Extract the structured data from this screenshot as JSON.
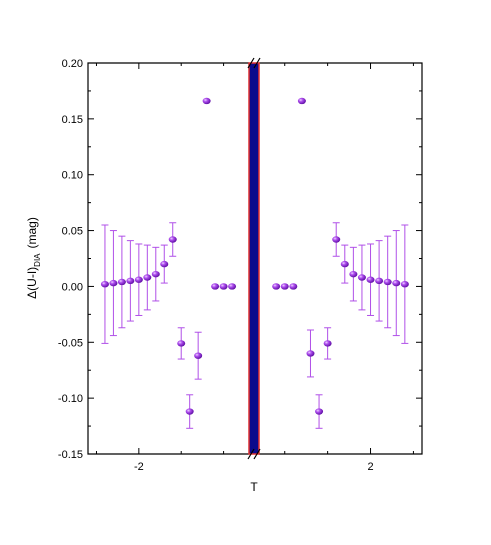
{
  "chart_data": {
    "type": "scatter",
    "title": "",
    "xlabel": "T",
    "ylabel": {
      "main": "Δ(U-I)",
      "subscript": "DIA",
      "unit": "(mag)"
    },
    "ylim": [
      -0.15,
      0.2
    ],
    "yticks": [
      "0.20",
      "0.15",
      "0.10",
      "0.05",
      "0.00",
      "-0.05",
      "-0.10",
      "-0.15"
    ],
    "xticks": [
      {
        "value": -2,
        "label": "-2"
      },
      {
        "value": 2,
        "label": "2"
      }
    ],
    "axis_break": {
      "center": 0,
      "band_color": "#0a0a8c",
      "border_color": "#e03030"
    },
    "colors": {
      "points": "#9a30e0",
      "errorbars": "#b050e8"
    },
    "points": [
      {
        "x": -2.4,
        "y": 0.002,
        "err": 0.053
      },
      {
        "x": -2.3,
        "y": 0.003,
        "err": 0.047
      },
      {
        "x": -2.2,
        "y": 0.004,
        "err": 0.041
      },
      {
        "x": -2.1,
        "y": 0.005,
        "err": 0.036
      },
      {
        "x": -2.0,
        "y": 0.006,
        "err": 0.032
      },
      {
        "x": -1.9,
        "y": 0.008,
        "err": 0.029
      },
      {
        "x": -1.8,
        "y": 0.011,
        "err": 0.024
      },
      {
        "x": -1.7,
        "y": 0.02,
        "err": 0.017
      },
      {
        "x": -1.6,
        "y": 0.042,
        "err": 0.015
      },
      {
        "x": -1.5,
        "y": -0.051,
        "err": 0.014
      },
      {
        "x": -1.4,
        "y": -0.112,
        "err": 0.015
      },
      {
        "x": -1.3,
        "y": -0.062,
        "err": 0.021
      },
      {
        "x": -1.2,
        "y": 0.166,
        "err": 0
      },
      {
        "x": -1.1,
        "y": 0.0,
        "err": 0
      },
      {
        "x": -1.0,
        "y": 0.0,
        "err": 0
      },
      {
        "x": -0.9,
        "y": 0.0,
        "err": 0
      },
      {
        "x": 0.9,
        "y": 0.0,
        "err": 0
      },
      {
        "x": 1.0,
        "y": 0.0,
        "err": 0
      },
      {
        "x": 1.1,
        "y": 0.0,
        "err": 0
      },
      {
        "x": 1.2,
        "y": 0.166,
        "err": 0
      },
      {
        "x": 1.3,
        "y": -0.06,
        "err": 0.021
      },
      {
        "x": 1.4,
        "y": -0.112,
        "err": 0.015
      },
      {
        "x": 1.5,
        "y": -0.051,
        "err": 0.014
      },
      {
        "x": 1.6,
        "y": 0.042,
        "err": 0.015
      },
      {
        "x": 1.7,
        "y": 0.02,
        "err": 0.017
      },
      {
        "x": 1.8,
        "y": 0.011,
        "err": 0.024
      },
      {
        "x": 1.9,
        "y": 0.008,
        "err": 0.029
      },
      {
        "x": 2.0,
        "y": 0.006,
        "err": 0.032
      },
      {
        "x": 2.1,
        "y": 0.005,
        "err": 0.036
      },
      {
        "x": 2.2,
        "y": 0.004,
        "err": 0.041
      },
      {
        "x": 2.3,
        "y": 0.003,
        "err": 0.047
      },
      {
        "x": 2.4,
        "y": 0.002,
        "err": 0.053
      }
    ]
  }
}
